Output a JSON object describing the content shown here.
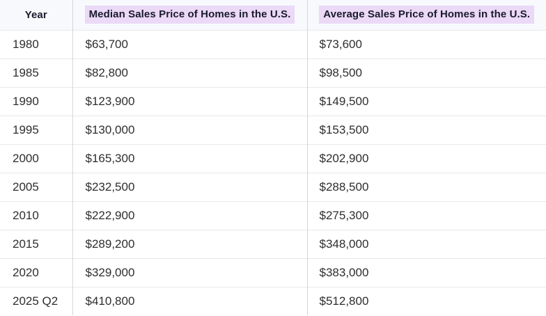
{
  "colors": {
    "header_bg": "#f7f9fc",
    "header_highlight": "#ebd9f7",
    "header_text": "#1a1a2e",
    "body_text": "#2e2e2e",
    "row_border": "#e8e8e8",
    "column_border": "#d6d6d6"
  },
  "table": {
    "columns": [
      {
        "label": "Year",
        "highlighted": false
      },
      {
        "label": "Median Sales Price of Homes in the U.S.",
        "highlighted": true
      },
      {
        "label": "Average Sales Price of Homes in the U.S.",
        "highlighted": true
      }
    ],
    "rows": [
      [
        "1980",
        "$63,700",
        "$73,600"
      ],
      [
        "1985",
        "$82,800",
        "$98,500"
      ],
      [
        "1990",
        "$123,900",
        "$149,500"
      ],
      [
        "1995",
        "$130,000",
        "$153,500"
      ],
      [
        "2000",
        "$165,300",
        "$202,900"
      ],
      [
        "2005",
        "$232,500",
        "$288,500"
      ],
      [
        "2010",
        "$222,900",
        "$275,300"
      ],
      [
        "2015",
        "$289,200",
        "$348,000"
      ],
      [
        "2020",
        "$329,000",
        "$383,000"
      ],
      [
        "2025 Q2",
        "$410,800",
        "$512,800"
      ]
    ]
  },
  "chart_data": {
    "type": "table",
    "title": "",
    "columns": [
      "Year",
      "Median Sales Price of Homes in the U.S.",
      "Average Sales Price of Homes in the U.S."
    ],
    "categories": [
      "1980",
      "1985",
      "1990",
      "1995",
      "2000",
      "2005",
      "2010",
      "2015",
      "2020",
      "2025 Q2"
    ],
    "series": [
      {
        "name": "Median Sales Price of Homes in the U.S.",
        "values": [
          63700,
          82800,
          123900,
          130000,
          165300,
          232500,
          222900,
          289200,
          329000,
          410800
        ]
      },
      {
        "name": "Average Sales Price of Homes in the U.S.",
        "values": [
          73600,
          98500,
          149500,
          153500,
          202900,
          288500,
          275300,
          348000,
          383000,
          512800
        ]
      }
    ],
    "layout": {
      "grid": "row-and-column-dividers",
      "header_highlight": "lavender"
    }
  }
}
